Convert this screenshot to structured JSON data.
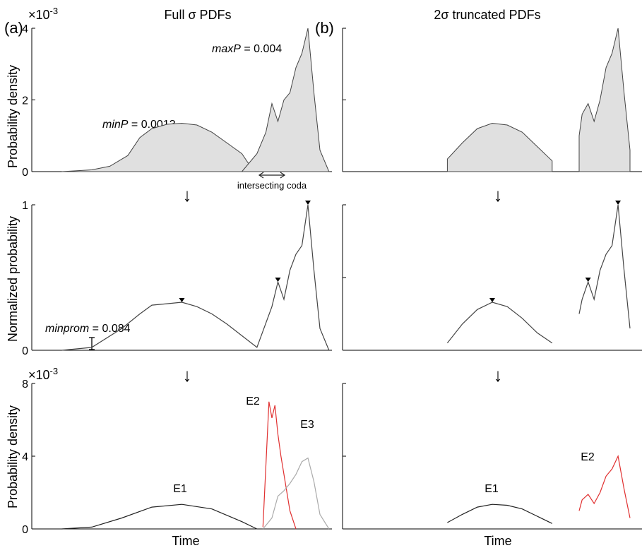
{
  "figure": {
    "panel_a_label": "(a)",
    "panel_b_label": "(b)",
    "title_a": "Full σ PDFs",
    "title_b": "2σ truncated PDFs",
    "xlabel": "Time",
    "row1_ylabel": "Probability density",
    "row2_ylabel": "Normalized probability",
    "row3_ylabel": "Probability density",
    "exp_base_row1": "×10",
    "exp_pow_row1": "-3",
    "exp_base_row3": "×10",
    "exp_pow_row3": "-3",
    "maxp_var": "maxP",
    "maxp_val": " = 0.004",
    "minp_var": "minP",
    "minp_val": " = 0.0013",
    "minprom_var": "minprom",
    "minprom_val": " = 0.084",
    "coda_label": "intersecting coda",
    "event_labels": {
      "e1": "E1",
      "e2": "E2",
      "e3": "E3"
    },
    "arrow_glyph": "↓"
  },
  "chart_data": [
    {
      "panel": "a-row1",
      "type": "area",
      "ylabel": "Probability density",
      "y_ticks": [
        "0",
        "2",
        "4"
      ],
      "ylim": [
        0,
        4.0
      ],
      "y_exponent": "×10^-3",
      "series": [
        {
          "fill": "#e0e0e0",
          "stroke": "#444444",
          "x": [
            0.1,
            0.2,
            0.26,
            0.32,
            0.36,
            0.4,
            0.45,
            0.5,
            0.55,
            0.6,
            0.65,
            0.7,
            0.72,
            0.75
          ],
          "values": [
            0,
            0.05,
            0.15,
            0.45,
            0.95,
            1.2,
            1.32,
            1.35,
            1.3,
            1.1,
            0.8,
            0.5,
            0.25,
            0
          ]
        },
        {
          "fill": "#e0e0e0",
          "stroke": "#444444",
          "x": [
            0.7,
            0.75,
            0.78,
            0.8,
            0.82,
            0.84,
            0.86,
            0.88,
            0.9,
            0.92,
            0.94,
            0.96,
            0.99
          ],
          "values": [
            0,
            0.5,
            1.1,
            1.9,
            1.4,
            2.0,
            2.2,
            2.9,
            3.3,
            4.0,
            2.2,
            0.6,
            0
          ]
        }
      ]
    },
    {
      "panel": "b-row1",
      "type": "area",
      "ylim": [
        0,
        4.0
      ],
      "series": [
        {
          "fill": "#e0e0e0",
          "stroke": "#444444",
          "x": [
            0.35,
            0.4,
            0.45,
            0.5,
            0.55,
            0.6,
            0.65,
            0.7
          ],
          "values": [
            0.35,
            0.8,
            1.2,
            1.35,
            1.3,
            1.1,
            0.7,
            0.3
          ]
        },
        {
          "fill": "#e0e0e0",
          "stroke": "#444444",
          "x": [
            0.79,
            0.8,
            0.82,
            0.84,
            0.86,
            0.88,
            0.9,
            0.92,
            0.94,
            0.96
          ],
          "values": [
            1.0,
            1.6,
            1.9,
            1.4,
            2.0,
            2.9,
            3.3,
            4.0,
            2.2,
            0.6
          ]
        }
      ]
    },
    {
      "panel": "a-row2",
      "type": "line",
      "ylabel": "Normalized probability",
      "y_ticks": [
        "0",
        "1"
      ],
      "ylim": [
        0,
        1
      ],
      "peaks": [
        {
          "x": 0.5,
          "y": 0.33
        },
        {
          "x": 0.82,
          "y": 0.47
        },
        {
          "x": 0.92,
          "y": 1.0
        }
      ],
      "minprom": 0.084,
      "series": [
        {
          "stroke": "#444444",
          "x": [
            0.1,
            0.2,
            0.3,
            0.36,
            0.4,
            0.45,
            0.5,
            0.55,
            0.6,
            0.65,
            0.7,
            0.75,
            0.8,
            0.82,
            0.84,
            0.86,
            0.88,
            0.9,
            0.92,
            0.94,
            0.96,
            0.99
          ],
          "values": [
            0,
            0.02,
            0.15,
            0.25,
            0.31,
            0.32,
            0.33,
            0.3,
            0.25,
            0.18,
            0.1,
            0.02,
            0.3,
            0.47,
            0.35,
            0.55,
            0.66,
            0.72,
            1.0,
            0.55,
            0.15,
            0
          ]
        }
      ]
    },
    {
      "panel": "b-row2",
      "type": "line",
      "ylim": [
        0,
        1
      ],
      "peaks": [
        {
          "x": 0.5,
          "y": 0.33
        },
        {
          "x": 0.82,
          "y": 0.47
        },
        {
          "x": 0.92,
          "y": 1.0
        }
      ],
      "series": [
        {
          "stroke": "#444444",
          "x": [
            0.35,
            0.4,
            0.45,
            0.5,
            0.55,
            0.6,
            0.65,
            0.7
          ],
          "values": [
            0.05,
            0.18,
            0.28,
            0.33,
            0.3,
            0.22,
            0.12,
            0.05
          ]
        },
        {
          "stroke": "#444444",
          "x": [
            0.79,
            0.8,
            0.82,
            0.84,
            0.86,
            0.88,
            0.9,
            0.92,
            0.94,
            0.96
          ],
          "values": [
            0.25,
            0.35,
            0.47,
            0.35,
            0.55,
            0.66,
            0.72,
            1.0,
            0.55,
            0.15
          ]
        }
      ]
    },
    {
      "panel": "a-row3",
      "type": "line",
      "ylabel": "Probability density",
      "y_ticks": [
        "0",
        "4",
        "8"
      ],
      "ylim": [
        0,
        8
      ],
      "y_exponent": "×10^-3",
      "series": [
        {
          "name": "E1",
          "stroke": "#222222",
          "x": [
            0.1,
            0.2,
            0.3,
            0.4,
            0.5,
            0.6,
            0.7,
            0.75
          ],
          "values": [
            0,
            0.1,
            0.6,
            1.2,
            1.35,
            1.1,
            0.4,
            0
          ]
        },
        {
          "name": "E2",
          "stroke": "#e03030",
          "x": [
            0.77,
            0.79,
            0.8,
            0.81,
            0.82,
            0.83,
            0.86,
            0.88
          ],
          "values": [
            0.1,
            7.0,
            6.1,
            6.8,
            5.2,
            4.0,
            1.0,
            0
          ]
        },
        {
          "name": "E3",
          "stroke": "#aaaaaa",
          "x": [
            0.77,
            0.8,
            0.82,
            0.84,
            0.86,
            0.88,
            0.9,
            0.92,
            0.94,
            0.96,
            0.99
          ],
          "values": [
            0,
            0.6,
            1.8,
            2.1,
            2.5,
            3.0,
            3.7,
            3.9,
            2.6,
            0.8,
            0
          ]
        }
      ]
    },
    {
      "panel": "b-row3",
      "type": "line",
      "ylim": [
        0,
        8
      ],
      "series": [
        {
          "name": "E1",
          "stroke": "#222222",
          "x": [
            0.35,
            0.4,
            0.45,
            0.5,
            0.55,
            0.6,
            0.65,
            0.7
          ],
          "values": [
            0.35,
            0.8,
            1.2,
            1.35,
            1.3,
            1.1,
            0.7,
            0.3
          ]
        },
        {
          "name": "E2",
          "stroke": "#e03030",
          "x": [
            0.79,
            0.8,
            0.82,
            0.84,
            0.86,
            0.88,
            0.9,
            0.92,
            0.94,
            0.96
          ],
          "values": [
            1.0,
            1.6,
            1.9,
            1.4,
            2.0,
            2.9,
            3.3,
            4.0,
            2.2,
            0.6
          ]
        }
      ]
    }
  ]
}
